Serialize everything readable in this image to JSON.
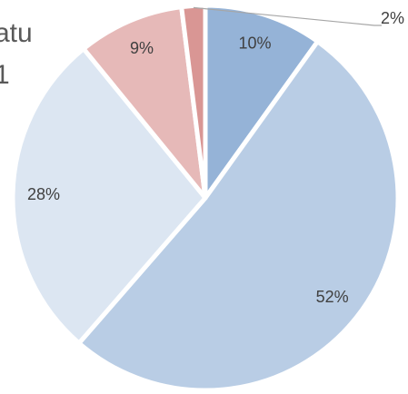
{
  "chart_data": {
    "type": "pie",
    "title": [
      "atu",
      "1"
    ],
    "categories": [
      null,
      null,
      null,
      null,
      null
    ],
    "values": [
      10,
      52,
      28,
      9,
      2
    ],
    "value_labels": [
      "10%",
      "52%",
      "28%",
      "9%",
      "2%"
    ],
    "colors": [
      "#95b3d7",
      "#b9cde5",
      "#dce6f2",
      "#e6b9b8",
      "#d99694"
    ]
  }
}
